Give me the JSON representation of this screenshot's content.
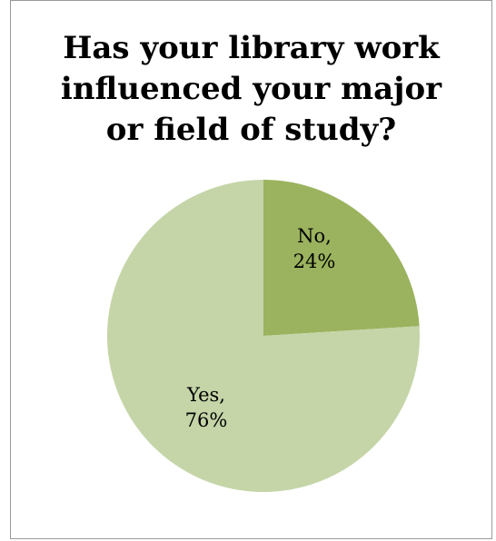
{
  "chart_data": {
    "type": "pie",
    "title": "Has your library work influenced your major or field of study?",
    "title_lines": [
      "Has your library work",
      "influenced your major",
      "or field of study?"
    ],
    "slices": [
      {
        "label": "No",
        "value": 24,
        "display": "24%",
        "color": "#9bb35e"
      },
      {
        "label": "Yes",
        "value": 76,
        "display": "76%",
        "color": "#c5d5a8"
      }
    ],
    "legend": "none",
    "start_angle_deg": 0,
    "direction": "clockwise"
  }
}
